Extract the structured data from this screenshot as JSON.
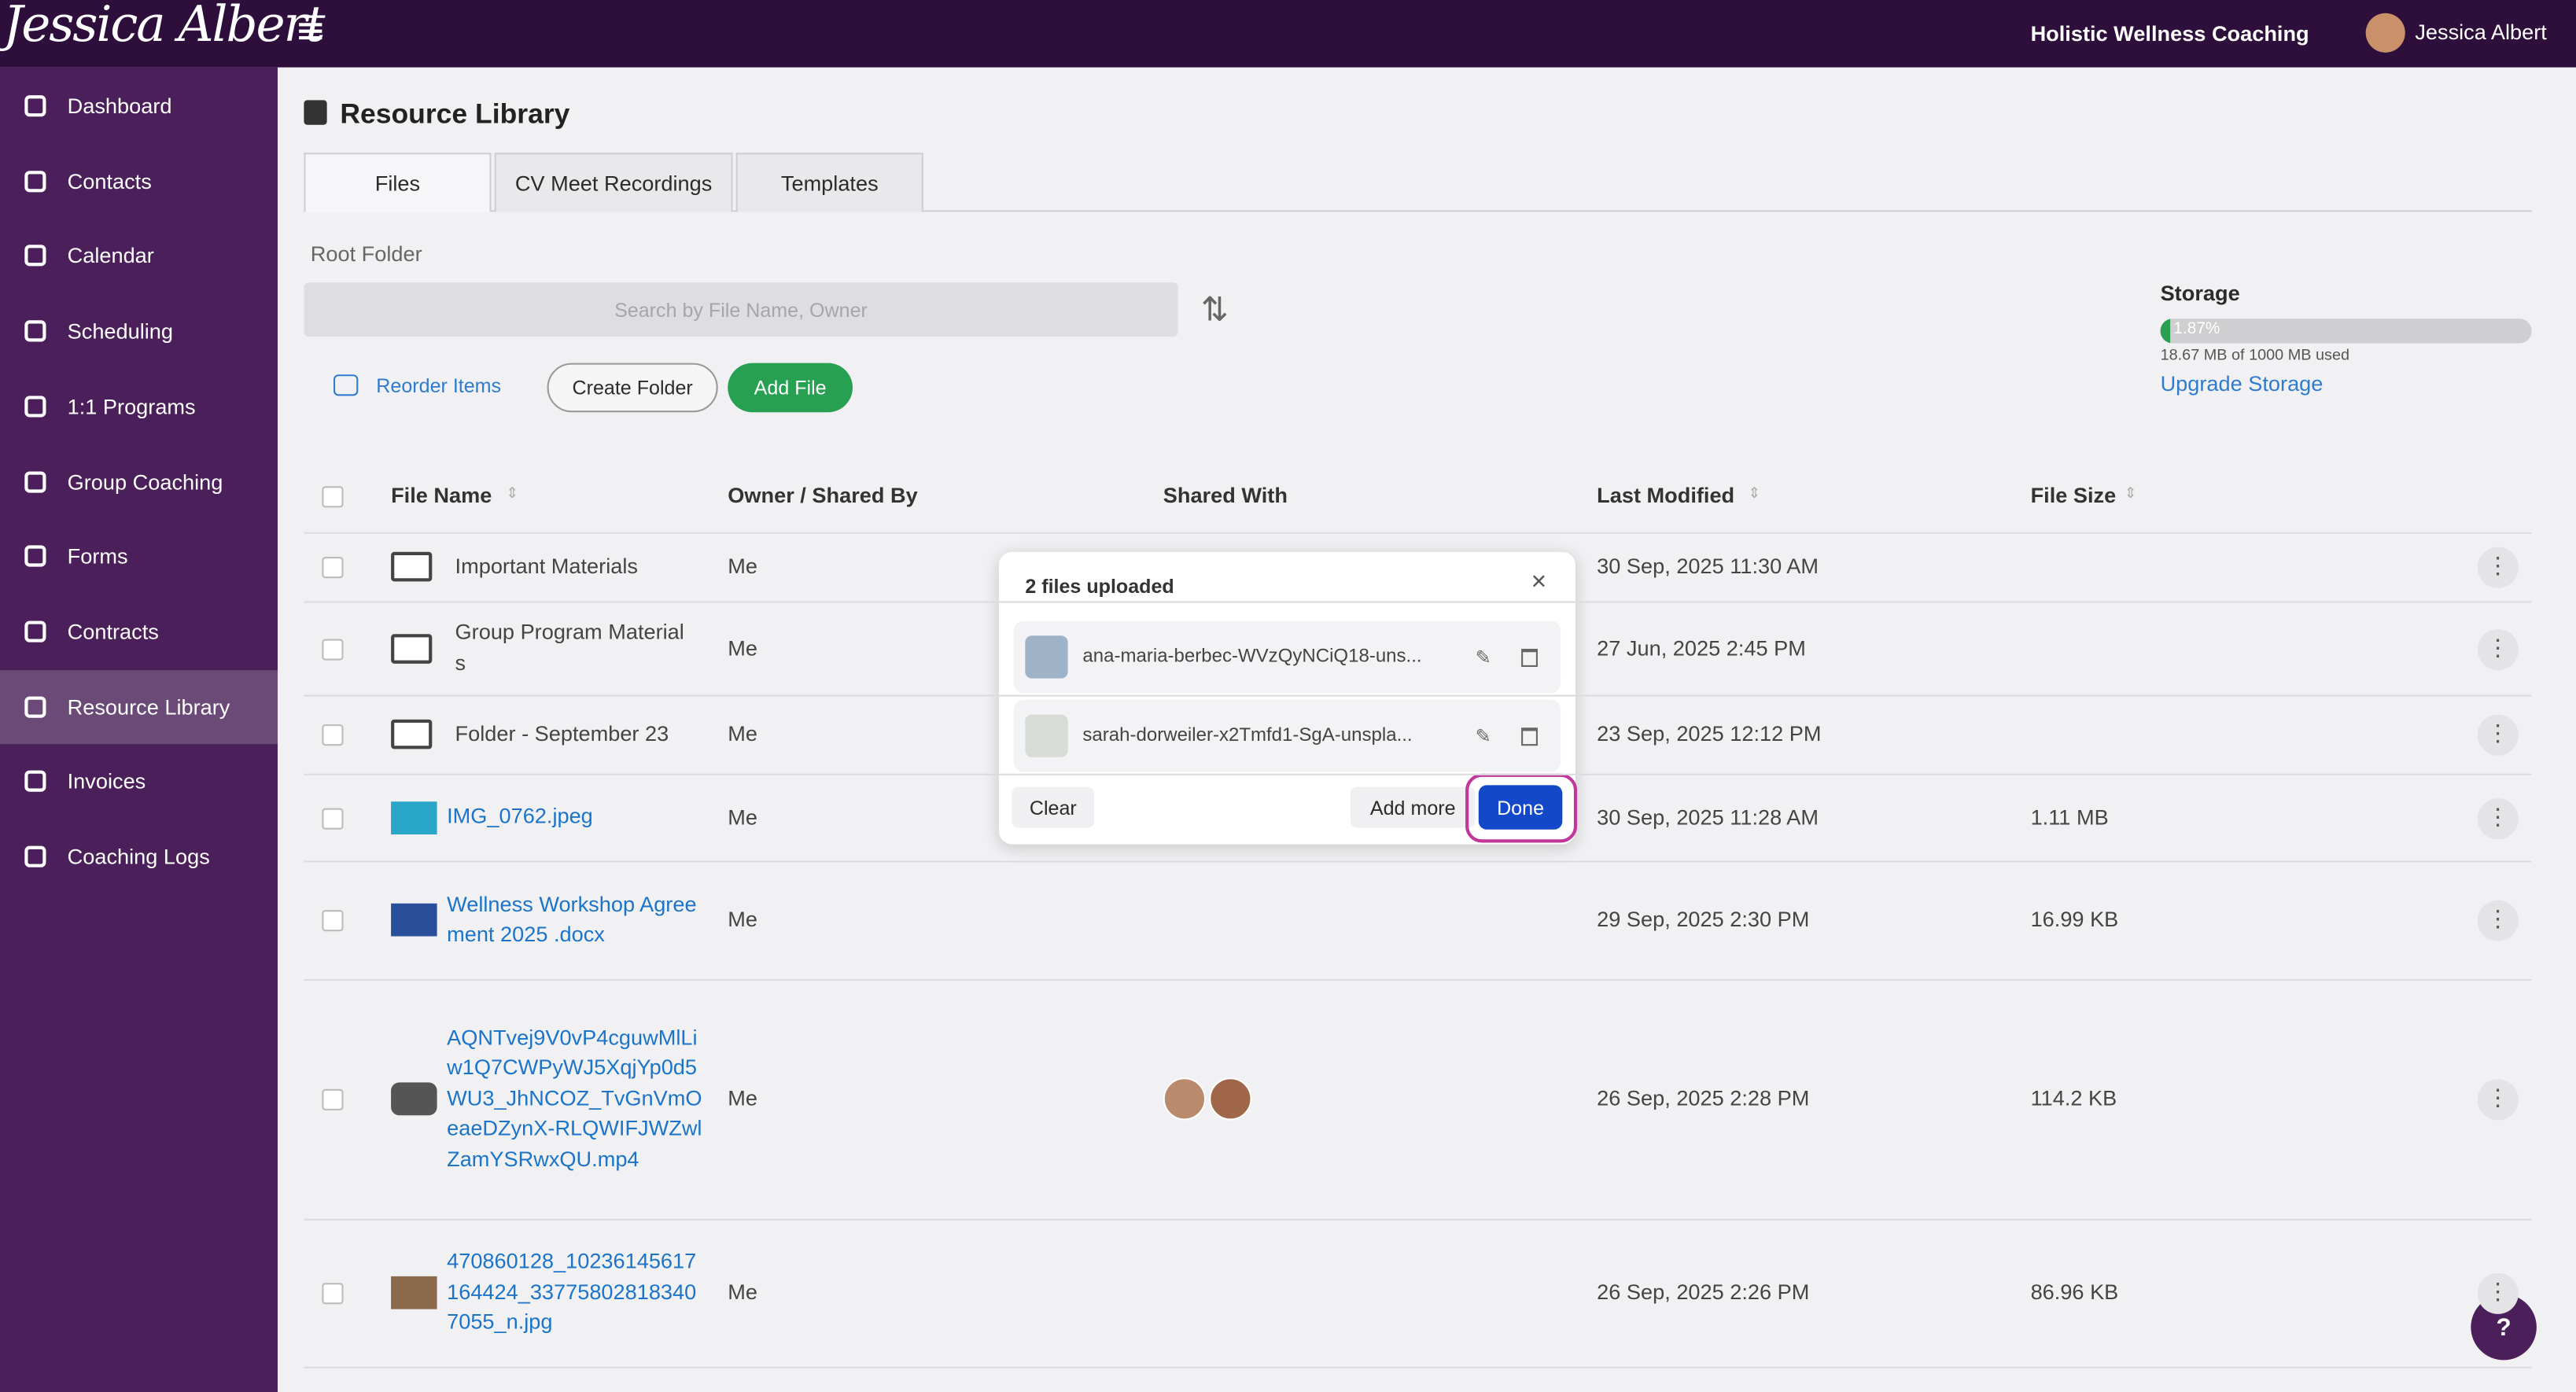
{
  "header": {
    "brand": "Jessica Albert",
    "business": "Holistic Wellness Coaching",
    "user": "Jessica Albert"
  },
  "sidebar": [
    "Dashboard",
    "Contacts",
    "Calendar",
    "Scheduling",
    "1:1 Programs",
    "Group Coaching",
    "Forms",
    "Contracts",
    "Resource Library",
    "Invoices",
    "Coaching Logs"
  ],
  "page": {
    "title": "Resource Library",
    "tabs": [
      "Files",
      "CV Meet Recordings",
      "Templates"
    ],
    "breadcrumb": "Root Folder",
    "search_placeholder": "Search by File Name, Owner",
    "reorder": "Reorder Items",
    "create_folder": "Create Folder",
    "add_file": "Add File"
  },
  "storage": {
    "title": "Storage",
    "percent_label": "1.87%",
    "usage": "18.67 MB of 1000 MB used",
    "upgrade": "Upgrade Storage"
  },
  "table": {
    "columns": [
      "File Name",
      "Owner / Shared By",
      "Shared With",
      "Last Modified",
      "File Size"
    ],
    "rows": [
      {
        "name": "Important Materials",
        "owner": "Me",
        "modified": "30 Sep, 2025 11:30 AM"
      },
      {
        "name": "Group Program Materials",
        "owner": "Me",
        "modified": "27 Jun, 2025 2:45 PM"
      },
      {
        "name": "Folder - September 23",
        "owner": "Me",
        "modified": "23 Sep, 2025 12:12 PM"
      },
      {
        "name": "IMG_0762.jpeg",
        "owner": "Me",
        "modified": "30 Sep, 2025 11:28 AM",
        "size": "1.11 MB"
      },
      {
        "name": "Wellness Workshop Agreement 2025 .docx",
        "owner": "Me",
        "modified": "29 Sep, 2025 2:30 PM",
        "size": "16.99 KB"
      },
      {
        "name": "AQNTvej9V0vP4cguwMlLiw1Q7CWPyWJ5XqjYp0d5WU3_JhNCOZ_TvGnVmOeaeDZynX-RLQWIFJWZwlZamYSRwxQU.mp4",
        "owner": "Me",
        "modified": "26 Sep, 2025 2:28 PM",
        "size": "114.2 KB"
      },
      {
        "name": "470860128_10236145617164424_337758028183407055_n.jpg",
        "owner": "Me",
        "modified": "26 Sep, 2025 2:26 PM",
        "size": "86.96 KB"
      }
    ]
  },
  "modal": {
    "title": "2 files uploaded",
    "files": [
      "ana-maria-berbec-WVzQyNCiQ18-uns...",
      "sarah-dorweiler-x2Tmfd1-SgA-unspla..."
    ],
    "clear": "Clear",
    "add_more": "Add more",
    "done": "Done"
  },
  "help": "?"
}
